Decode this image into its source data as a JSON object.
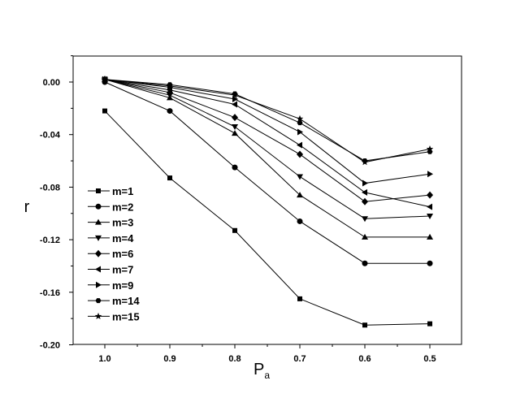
{
  "chart_data": {
    "type": "line",
    "title": "",
    "xlabel": "P",
    "xlabel_sub": "a",
    "ylabel": "r",
    "x": [
      1.0,
      0.9,
      0.8,
      0.7,
      0.6,
      0.5
    ],
    "x_ticks": [
      "1.0",
      "0.9",
      "0.8",
      "0.7",
      "0.6",
      "0.5"
    ],
    "y_ticks": [
      "0.00",
      "-0.04",
      "-0.08",
      "-0.12",
      "-0.16",
      "-0.20"
    ],
    "y_tick_values": [
      0.0,
      -0.04,
      -0.08,
      -0.12,
      -0.16,
      -0.2
    ],
    "xlim": [
      1.05,
      0.45
    ],
    "x_reversed": true,
    "ylim": [
      -0.2,
      0.02
    ],
    "grid": false,
    "legend_position": "left",
    "series": [
      {
        "name": "m=1",
        "marker": "square",
        "values": [
          -0.022,
          -0.073,
          -0.113,
          -0.165,
          -0.185,
          -0.184
        ]
      },
      {
        "name": "m=2",
        "marker": "circle",
        "values": [
          0.0,
          -0.022,
          -0.065,
          -0.106,
          -0.138,
          -0.138
        ]
      },
      {
        "name": "m=3",
        "marker": "triangle-up",
        "values": [
          0.002,
          -0.012,
          -0.039,
          -0.086,
          -0.118,
          -0.118
        ]
      },
      {
        "name": "m=4",
        "marker": "triangle-down",
        "values": [
          0.002,
          -0.01,
          -0.034,
          -0.072,
          -0.104,
          -0.102
        ]
      },
      {
        "name": "m=6",
        "marker": "diamond",
        "values": [
          0.002,
          -0.008,
          -0.027,
          -0.055,
          -0.091,
          -0.086
        ]
      },
      {
        "name": "m=7",
        "marker": "triangle-left",
        "values": [
          0.002,
          -0.006,
          -0.017,
          -0.048,
          -0.084,
          -0.095
        ]
      },
      {
        "name": "m=9",
        "marker": "triangle-right",
        "values": [
          0.002,
          -0.004,
          -0.013,
          -0.038,
          -0.077,
          -0.07
        ]
      },
      {
        "name": "m=14",
        "marker": "hexagon",
        "values": [
          0.002,
          -0.002,
          -0.009,
          -0.031,
          -0.06,
          -0.053
        ]
      },
      {
        "name": "m=15",
        "marker": "star",
        "values": [
          0.002,
          -0.003,
          -0.01,
          -0.028,
          -0.061,
          -0.051
        ]
      }
    ]
  }
}
